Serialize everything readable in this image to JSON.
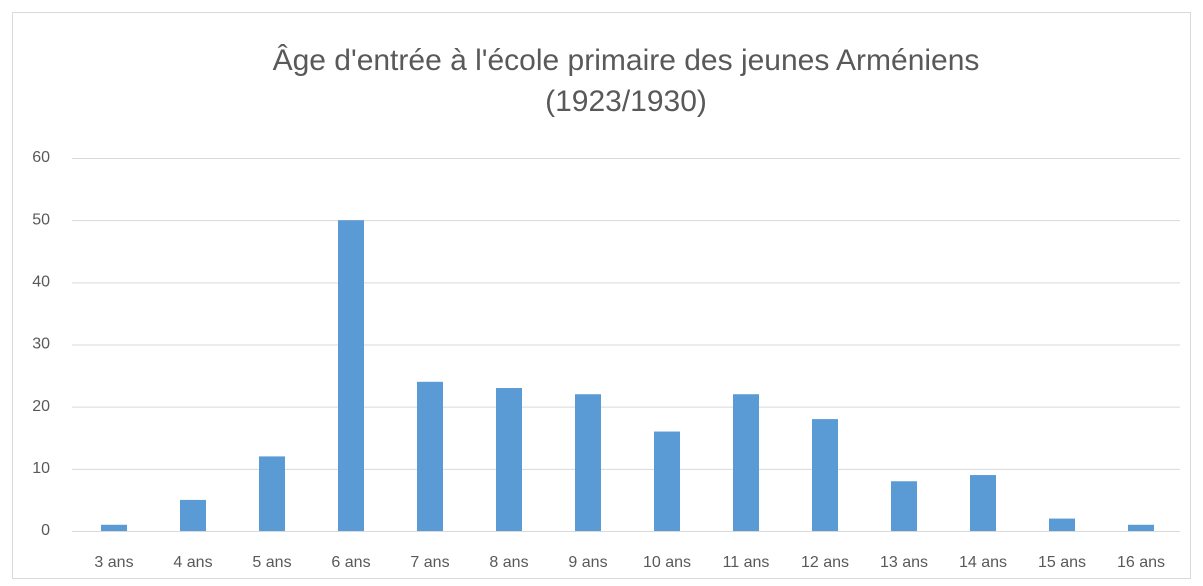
{
  "chart_data": {
    "type": "bar",
    "title": [
      "Âge d'entrée à l'école primaire des jeunes Arméniens",
      "(1923/1930)"
    ],
    "categories": [
      "3 ans",
      "4 ans",
      "5 ans",
      "6 ans",
      "7 ans",
      "8 ans",
      "9 ans",
      "10 ans",
      "11 ans",
      "12 ans",
      "13 ans",
      "14 ans",
      "15 ans",
      "16 ans"
    ],
    "values": [
      1,
      5,
      12,
      50,
      24,
      23,
      22,
      16,
      22,
      18,
      8,
      9,
      2,
      1
    ],
    "color": "#5b9bd5",
    "ylim": [
      0,
      60
    ],
    "yticks": [
      0,
      10,
      20,
      30,
      40,
      50,
      60
    ],
    "grid": true
  }
}
